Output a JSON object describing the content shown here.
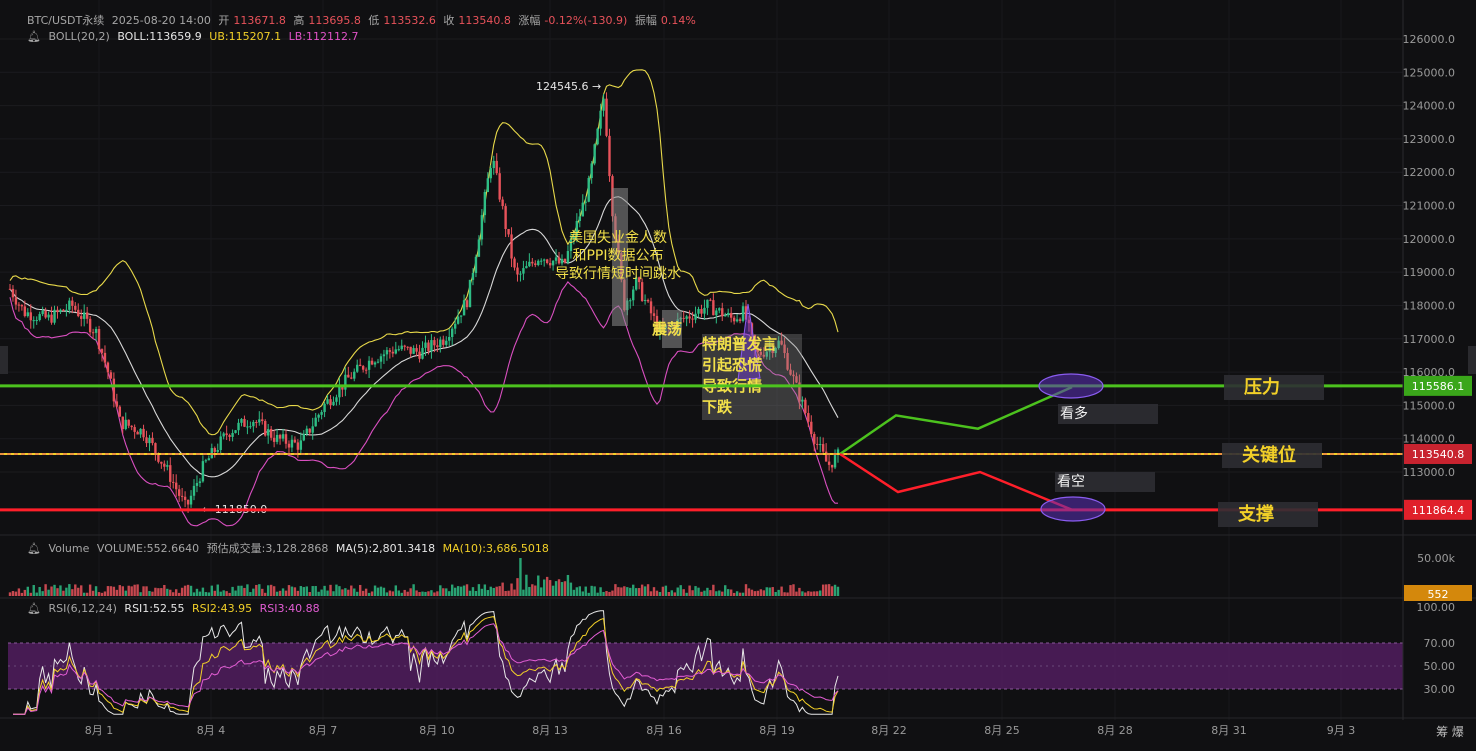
{
  "header": {
    "symbol": "BTC/USDT永续",
    "datetime": "2025-08-20 14:00",
    "open_label": "开",
    "open": "113671.8",
    "high_label": "高",
    "high": "113695.8",
    "low_label": "低",
    "low": "113532.6",
    "close_label": "收",
    "close": "113540.8",
    "change_label": "涨幅",
    "change": "-0.12%(-130.9)",
    "amp_label": "振幅",
    "amp": "0.14%"
  },
  "boll": {
    "name": "BOLL(20,2)",
    "mid": "BOLL:113659.9",
    "ub": "UB:115207.1",
    "lb": "LB:112112.7"
  },
  "volume": {
    "name": "Volume",
    "value": "VOLUME:552.6640",
    "est": "预估成交量:3,128.2868",
    "ma5": "MA(5):2,801.3418",
    "ma10": "MA(10):3,686.5018"
  },
  "rsi": {
    "name": "RSI(6,12,24)",
    "r1": "RSI1:52.55",
    "r2": "RSI2:43.95",
    "r3": "RSI3:40.88"
  },
  "colors": {
    "up": "#2ebd85",
    "down": "#e8525a",
    "ub": "#e8d94a",
    "mid": "#d8d8d8",
    "lb": "#d94fc0",
    "resistance": "#4cc21e",
    "support": "#ff1f2a",
    "key": "#f2d028"
  },
  "chart_data": {
    "type": "candlestick",
    "timeframe_hint": "hourly",
    "price_axis": {
      "ticks": [
        "126000.0",
        "125000.0",
        "124000.0",
        "123000.0",
        "122000.0",
        "121000.0",
        "120000.0",
        "119000.0",
        "118000.0",
        "117000.0",
        "116000.0",
        "115000.0",
        "114000.0",
        "113000.0"
      ],
      "ylim": [
        111400,
        126300
      ]
    },
    "date_axis": [
      "8月 1",
      "8月 4",
      "8月 7",
      "8月 10",
      "8月 13",
      "8月 16",
      "8月 19",
      "8月 22",
      "8月 25",
      "8月 28",
      "8月 31",
      "9月 3"
    ],
    "scale_label": "筹 爆",
    "price_path": [
      [
        0,
        119000
      ],
      [
        24,
        117800
      ],
      [
        48,
        117600
      ],
      [
        72,
        118000
      ],
      [
        96,
        117200
      ],
      [
        108,
        116000
      ],
      [
        120,
        114500
      ],
      [
        144,
        114200
      ],
      [
        168,
        113000
      ],
      [
        186,
        111900
      ],
      [
        204,
        113200
      ],
      [
        228,
        114200
      ],
      [
        252,
        114600
      ],
      [
        276,
        114000
      ],
      [
        300,
        113800
      ],
      [
        324,
        115000
      ],
      [
        348,
        115800
      ],
      [
        372,
        116400
      ],
      [
        396,
        116700
      ],
      [
        420,
        116600
      ],
      [
        444,
        117000
      ],
      [
        468,
        118200
      ],
      [
        492,
        122500
      ],
      [
        516,
        118800
      ],
      [
        540,
        119500
      ],
      [
        564,
        119200
      ],
      [
        588,
        121500
      ],
      [
        604,
        124300
      ],
      [
        612,
        121000
      ],
      [
        624,
        118000
      ],
      [
        636,
        118700
      ],
      [
        660,
        117200
      ],
      [
        684,
        117600
      ],
      [
        708,
        118000
      ],
      [
        732,
        117600
      ],
      [
        744,
        117800
      ],
      [
        756,
        116500
      ],
      [
        780,
        116900
      ],
      [
        792,
        115900
      ],
      [
        804,
        114900
      ],
      [
        816,
        113900
      ],
      [
        828,
        113200
      ],
      [
        840,
        113540
      ]
    ],
    "high_label": "124545.6",
    "low_label": "111850.0",
    "levels": [
      {
        "name": "压力",
        "price": 115586.1,
        "tag": "115586.1"
      },
      {
        "name": "关键位",
        "price": 113540.8,
        "tag": "113540.8"
      },
      {
        "name": "支撑",
        "price": 111864.4,
        "tag": "111864.4"
      }
    ],
    "scenarios": [
      {
        "name": "看多",
        "path": [
          [
            840,
            113540
          ],
          [
            896,
            114700
          ],
          [
            978,
            114300
          ],
          [
            1072,
            115550
          ]
        ]
      },
      {
        "name": "看空",
        "path": [
          [
            840,
            113540
          ],
          [
            898,
            112400
          ],
          [
            980,
            113000
          ],
          [
            1072,
            111864
          ]
        ]
      }
    ],
    "annotations": [
      {
        "lines": [
          "美国失业金人数",
          "和PPI数据公布",
          "导致行情短时间跳水"
        ]
      },
      {
        "lines": [
          "震荡"
        ]
      },
      {
        "lines": [
          "特朗普发言",
          "引起恐慌",
          "导致行情",
          "下跌"
        ]
      }
    ],
    "volume_axis": {
      "ticks": [
        "50.00k"
      ],
      "last": "552"
    },
    "rsi_axis": {
      "ticks": [
        "100.00",
        "70.00",
        "50.00",
        "30.00"
      ],
      "band": [
        30,
        70
      ]
    }
  }
}
